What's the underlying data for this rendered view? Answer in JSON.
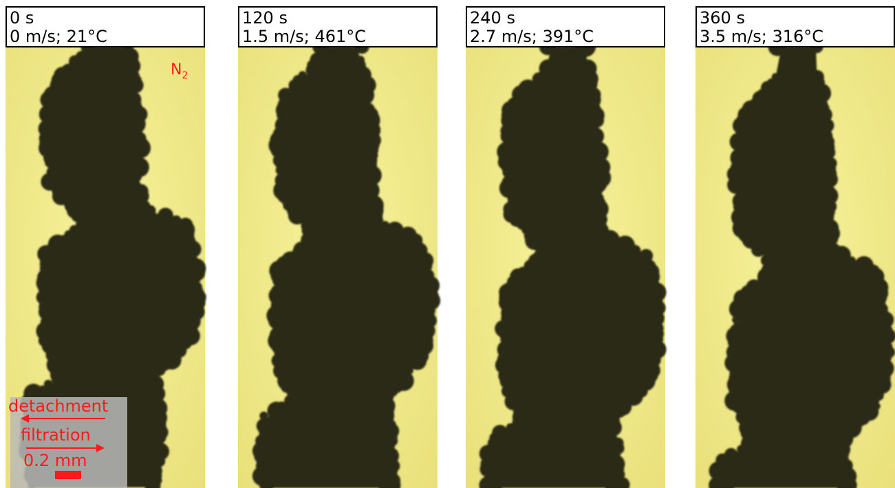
{
  "panels": [
    {
      "time": "0 s",
      "conditions": "0 m/s; 21°C"
    },
    {
      "time": "120 s",
      "conditions": "1.5 m/s; 461°C"
    },
    {
      "time": "240 s",
      "conditions": "2.7 m/s; 391°C"
    },
    {
      "time": "360 s",
      "conditions": "3.5 m/s; 316°C"
    }
  ],
  "gas": {
    "symbol": "N",
    "subscript": "2"
  },
  "legend": {
    "detachment": "detachment",
    "filtration": "filtration",
    "scale": "0.2 mm"
  }
}
